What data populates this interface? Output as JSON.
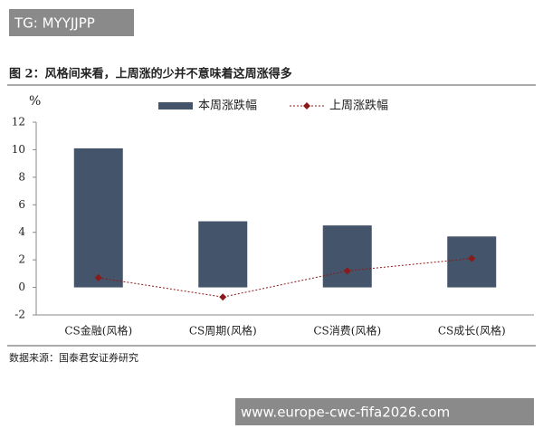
{
  "watermark_top": "TG: MYYJJPP",
  "watermark_bottom": "www.europe-cwc-fifa2026.com",
  "chart_data": {
    "type": "bar_line",
    "title": "图 2：风格间来看，上周涨的少并不意味着这周涨得多",
    "y_label": "%",
    "source": "数据来源：国泰君安证券研究",
    "categories": [
      "CS金融(风格)",
      "CS周期(风格)",
      "CS消费(风格)",
      "CS成长(风格)"
    ],
    "series": [
      {
        "name": "本周涨跌幅",
        "type": "bar",
        "color": "#44546a",
        "values": [
          10.1,
          4.8,
          4.5,
          3.7
        ]
      },
      {
        "name": "上周涨跌幅",
        "type": "line",
        "color": "#8b1a1a",
        "values": [
          0.7,
          -0.7,
          1.2,
          2.1
        ]
      }
    ],
    "ylim": [
      -2,
      12
    ],
    "yticks": [
      -2,
      0,
      2,
      4,
      6,
      8,
      10,
      12
    ],
    "grid": false,
    "legend": "top"
  }
}
